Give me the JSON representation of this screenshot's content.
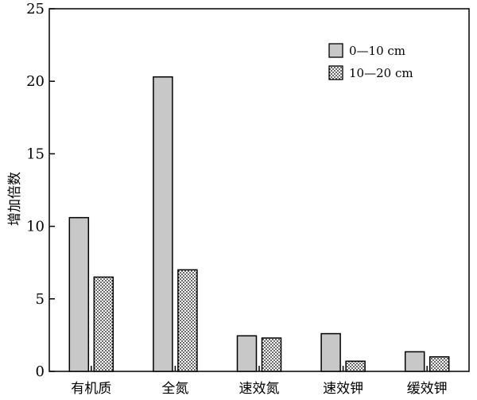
{
  "chart_data": {
    "type": "bar",
    "categories": [
      "有机质",
      "全氮",
      "速效氮",
      "速效钾",
      "缓效钾"
    ],
    "series": [
      {
        "name": "0—10 cm",
        "values": [
          10.6,
          20.3,
          2.45,
          2.6,
          1.35
        ],
        "fill": "#c8c8c8",
        "pattern": "solid"
      },
      {
        "name": "10—20 cm",
        "values": [
          6.5,
          7.0,
          2.3,
          0.7,
          1.0
        ],
        "fill": "#ffffff",
        "pattern": "dots"
      }
    ],
    "ylabel": "增加倍数",
    "ylim": [
      0,
      25
    ],
    "yticks": [
      0,
      5,
      10,
      15,
      20,
      25
    ],
    "legend_position": "top-right",
    "grid": false
  }
}
